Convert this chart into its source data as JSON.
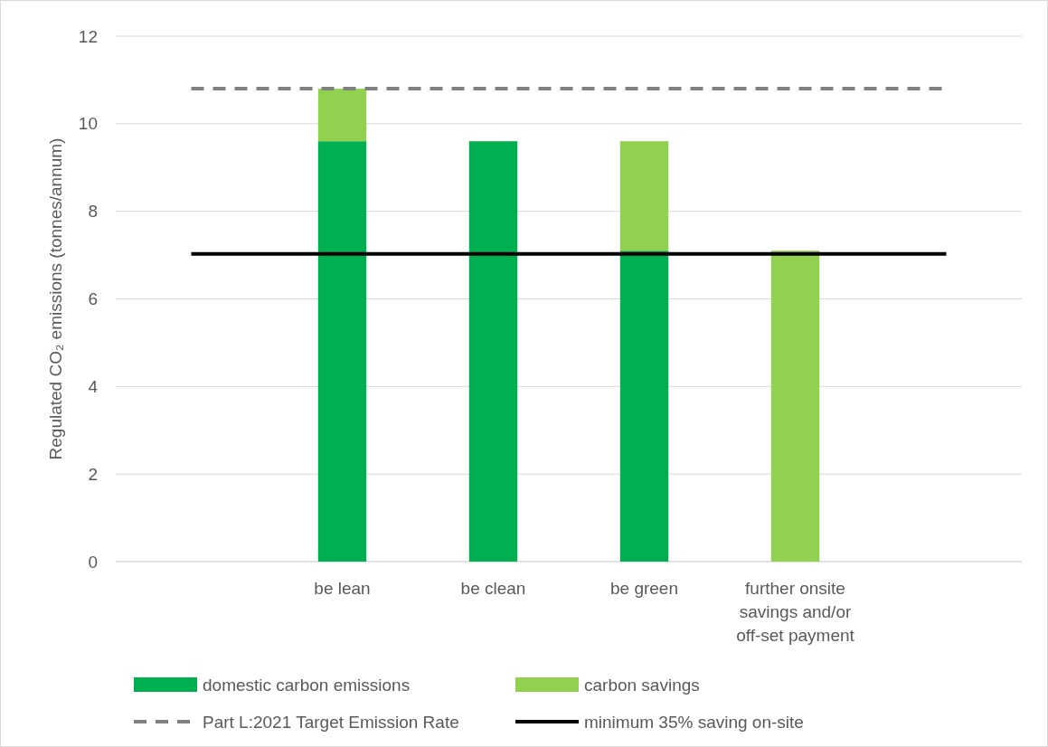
{
  "chart_data": {
    "type": "bar",
    "stacked": true,
    "ylabel": "Regulated CO₂ emissions (tonnes/annum)",
    "categories": [
      null,
      "be lean",
      "be clean",
      "be green",
      "further onsite savings and/or off-set payment",
      null
    ],
    "series": [
      {
        "name": "domestic carbon emissions",
        "color": "#00b050",
        "values": [
          null,
          9.6,
          9.6,
          7.1,
          null,
          null
        ]
      },
      {
        "name": "carbon savings",
        "color": "#92d050",
        "values": [
          null,
          1.2,
          null,
          2.5,
          7.1,
          null
        ]
      },
      {
        "name": "Part L:2021 Target Emission Rate",
        "type": "line",
        "color": "#808080",
        "line_style": "dashed",
        "values": [
          10.8,
          10.8,
          10.8,
          10.8,
          10.8,
          10.8
        ]
      },
      {
        "name": "minimum 35% saving on-site",
        "type": "line",
        "color": "#000000",
        "line_style": "solid",
        "values": [
          7.03,
          7.03,
          7.03,
          7.03,
          7.03,
          7.03
        ]
      }
    ],
    "ylim": [
      0,
      12
    ],
    "yticks": [
      0,
      2,
      4,
      6,
      8,
      10,
      12
    ],
    "grid": "y",
    "legend": "bottom",
    "marker": "none"
  }
}
